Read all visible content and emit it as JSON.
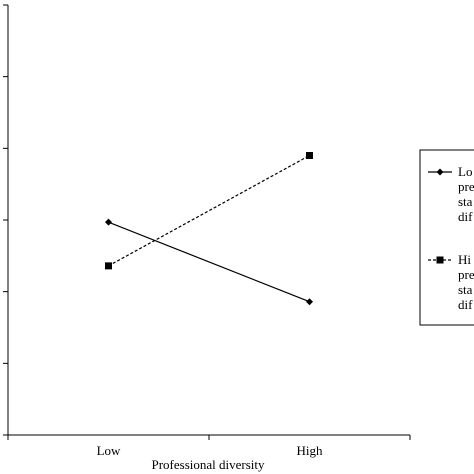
{
  "chart_data": {
    "type": "line",
    "categories": [
      "Low",
      "High"
    ],
    "xlabel": "Professional diversity",
    "ylabel": "",
    "title": "",
    "ylim": [
      0,
      6
    ],
    "grid": false,
    "legend_placement": "right",
    "series": [
      {
        "name": "Low prestige status differences",
        "legend_text_visible": [
          "Lo",
          "pre",
          "sta",
          "dif"
        ],
        "marker": "diamond",
        "line_style": "solid",
        "values": [
          2.97,
          1.86
        ]
      },
      {
        "name": "High prestige status differences",
        "legend_text_visible": [
          "Hi",
          "pre",
          "sta",
          "dif"
        ],
        "marker": "square",
        "line_style": "dashed",
        "values": [
          2.36,
          3.9
        ]
      }
    ]
  }
}
